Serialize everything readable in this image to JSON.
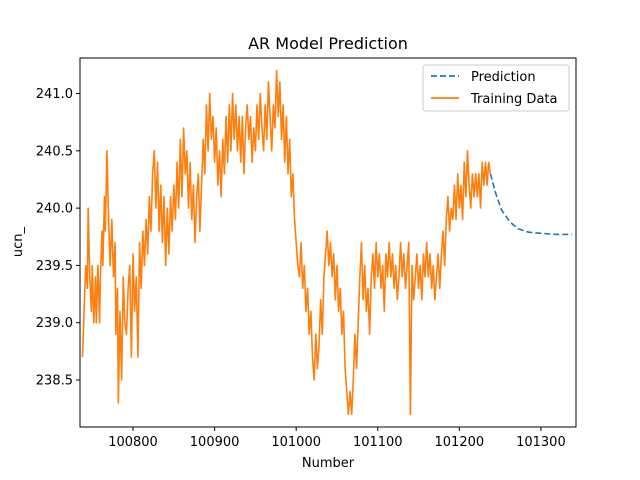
{
  "chart_data": {
    "type": "line",
    "title": "AR Model Prediction",
    "xlabel": "Number",
    "ylabel": "ucn_",
    "xlim": [
      100735,
      101343
    ],
    "ylim": [
      238.09,
      241.31
    ],
    "xticks": [
      100800,
      100900,
      101000,
      101100,
      101200,
      101300
    ],
    "yticks": [
      238.5,
      239.0,
      239.5,
      240.0,
      240.5,
      241.0
    ],
    "ytick_labels": [
      "238.5",
      "239.0",
      "239.5",
      "240.0",
      "240.5",
      "241.0"
    ],
    "grid": false,
    "legend_position": "top-right",
    "series": [
      {
        "name": "Prediction",
        "color": "#1f77b4",
        "style": "dashed",
        "points": [
          [
            101238,
            240.3
          ],
          [
            101245,
            240.12
          ],
          [
            101252,
            239.98
          ],
          [
            101262,
            239.88
          ],
          [
            101272,
            239.82
          ],
          [
            101285,
            239.79
          ],
          [
            101300,
            239.78
          ],
          [
            101320,
            239.77
          ],
          [
            101338,
            239.77
          ]
        ]
      },
      {
        "name": "Training Data",
        "color": "#ff7f0e",
        "style": "solid",
        "points": [
          [
            100738,
            238.7
          ],
          [
            100740,
            239.1
          ],
          [
            100742,
            239.5
          ],
          [
            100744,
            239.3
          ],
          [
            100745,
            240.0
          ],
          [
            100747,
            239.4
          ],
          [
            100749,
            239.1
          ],
          [
            100750,
            239.5
          ],
          [
            100752,
            239.0
          ],
          [
            100754,
            239.4
          ],
          [
            100755,
            239.0
          ],
          [
            100757,
            239.5
          ],
          [
            100759,
            239.0
          ],
          [
            100760,
            239.4
          ],
          [
            100762,
            239.8
          ],
          [
            100763,
            239.5
          ],
          [
            100765,
            240.1
          ],
          [
            100766,
            239.8
          ],
          [
            100768,
            240.5
          ],
          [
            100770,
            239.9
          ],
          [
            100772,
            239.5
          ],
          [
            100774,
            239.9
          ],
          [
            100776,
            239.4
          ],
          [
            100778,
            239.7
          ],
          [
            100779,
            238.9
          ],
          [
            100781,
            239.3
          ],
          [
            100782,
            238.3
          ],
          [
            100784,
            239.1
          ],
          [
            100786,
            238.5
          ],
          [
            100788,
            239.4
          ],
          [
            100790,
            239.0
          ],
          [
            100792,
            238.9
          ],
          [
            100794,
            239.3
          ],
          [
            100796,
            239.5
          ],
          [
            100798,
            238.7
          ],
          [
            100800,
            239.6
          ],
          [
            100802,
            239.1
          ],
          [
            100804,
            239.4
          ],
          [
            100806,
            238.7
          ],
          [
            100808,
            239.7
          ],
          [
            100810,
            239.3
          ],
          [
            100812,
            239.8
          ],
          [
            100814,
            239.5
          ],
          [
            100816,
            239.9
          ],
          [
            100818,
            239.6
          ],
          [
            100820,
            240.1
          ],
          [
            100822,
            239.8
          ],
          [
            100824,
            240.3
          ],
          [
            100826,
            240.5
          ],
          [
            100828,
            240.0
          ],
          [
            100830,
            240.4
          ],
          [
            100832,
            239.8
          ],
          [
            100834,
            240.2
          ],
          [
            100836,
            239.7
          ],
          [
            100838,
            240.1
          ],
          [
            100840,
            239.5
          ],
          [
            100842,
            240.0
          ],
          [
            100844,
            239.6
          ],
          [
            100846,
            240.1
          ],
          [
            100848,
            239.8
          ],
          [
            100850,
            240.2
          ],
          [
            100852,
            239.9
          ],
          [
            100854,
            240.4
          ],
          [
            100856,
            240.0
          ],
          [
            100858,
            240.6
          ],
          [
            100860,
            240.1
          ],
          [
            100862,
            240.7
          ],
          [
            100864,
            240.3
          ],
          [
            100866,
            240.5
          ],
          [
            100868,
            240.0
          ],
          [
            100870,
            240.4
          ],
          [
            100872,
            239.9
          ],
          [
            100874,
            240.2
          ],
          [
            100876,
            239.7
          ],
          [
            100878,
            240.1
          ],
          [
            100880,
            240.3
          ],
          [
            100882,
            239.8
          ],
          [
            100884,
            240.2
          ],
          [
            100886,
            240.6
          ],
          [
            100888,
            240.3
          ],
          [
            100890,
            240.9
          ],
          [
            100892,
            240.5
          ],
          [
            100894,
            241.0
          ],
          [
            100896,
            240.6
          ],
          [
            100898,
            240.8
          ],
          [
            100900,
            240.4
          ],
          [
            100902,
            240.7
          ],
          [
            100904,
            240.2
          ],
          [
            100906,
            240.5
          ],
          [
            100908,
            240.1
          ],
          [
            100910,
            240.6
          ],
          [
            100912,
            240.3
          ],
          [
            100914,
            240.8
          ],
          [
            100916,
            240.4
          ],
          [
            100918,
            240.9
          ],
          [
            100920,
            240.5
          ],
          [
            100922,
            241.0
          ],
          [
            100924,
            240.6
          ],
          [
            100926,
            240.9
          ],
          [
            100928,
            240.5
          ],
          [
            100930,
            240.8
          ],
          [
            100932,
            240.4
          ],
          [
            100934,
            240.8
          ],
          [
            100936,
            240.3
          ],
          [
            100938,
            240.7
          ],
          [
            100940,
            240.9
          ],
          [
            100942,
            240.6
          ],
          [
            100944,
            240.8
          ],
          [
            100946,
            240.4
          ],
          [
            100948,
            240.7
          ],
          [
            100950,
            240.5
          ],
          [
            100952,
            240.9
          ],
          [
            100954,
            240.6
          ],
          [
            100956,
            241.0
          ],
          [
            100958,
            240.7
          ],
          [
            100960,
            240.5
          ],
          [
            100962,
            240.9
          ],
          [
            100964,
            240.6
          ],
          [
            100966,
            241.1
          ],
          [
            100968,
            240.8
          ],
          [
            100970,
            240.5
          ],
          [
            100972,
            240.9
          ],
          [
            100974,
            240.7
          ],
          [
            100976,
            241.2
          ],
          [
            100978,
            240.8
          ],
          [
            100980,
            241.1
          ],
          [
            100982,
            240.6
          ],
          [
            100984,
            240.9
          ],
          [
            100986,
            240.4
          ],
          [
            100988,
            240.8
          ],
          [
            100990,
            240.3
          ],
          [
            100992,
            240.6
          ],
          [
            100994,
            240.1
          ],
          [
            100996,
            240.3
          ],
          [
            100998,
            239.9
          ],
          [
            101000,
            239.7
          ],
          [
            101002,
            239.5
          ],
          [
            101004,
            239.4
          ],
          [
            101006,
            239.7
          ],
          [
            101008,
            239.3
          ],
          [
            101010,
            239.5
          ],
          [
            101012,
            239.1
          ],
          [
            101014,
            239.3
          ],
          [
            101016,
            238.9
          ],
          [
            101018,
            239.1
          ],
          [
            101020,
            238.7
          ],
          [
            101022,
            238.5
          ],
          [
            101024,
            238.9
          ],
          [
            101026,
            238.6
          ],
          [
            101028,
            238.8
          ],
          [
            101030,
            239.2
          ],
          [
            101032,
            238.9
          ],
          [
            101034,
            239.4
          ],
          [
            101036,
            239.6
          ],
          [
            101038,
            239.8
          ],
          [
            101040,
            239.5
          ],
          [
            101042,
            239.7
          ],
          [
            101044,
            239.4
          ],
          [
            101046,
            239.6
          ],
          [
            101048,
            239.2
          ],
          [
            101050,
            239.5
          ],
          [
            101052,
            239.1
          ],
          [
            101054,
            239.3
          ],
          [
            101056,
            238.9
          ],
          [
            101058,
            239.1
          ],
          [
            101060,
            238.6
          ],
          [
            101062,
            238.4
          ],
          [
            101064,
            238.2
          ],
          [
            101066,
            238.4
          ],
          [
            101068,
            238.2
          ],
          [
            101070,
            238.5
          ],
          [
            101072,
            238.9
          ],
          [
            101074,
            238.6
          ],
          [
            101076,
            239.0
          ],
          [
            101078,
            239.4
          ],
          [
            101080,
            239.7
          ],
          [
            101082,
            239.2
          ],
          [
            101084,
            239.5
          ],
          [
            101086,
            239.1
          ],
          [
            101088,
            239.3
          ],
          [
            101090,
            238.9
          ],
          [
            101092,
            239.4
          ],
          [
            101094,
            239.6
          ],
          [
            101096,
            239.3
          ],
          [
            101098,
            239.7
          ],
          [
            101100,
            239.4
          ],
          [
            101102,
            239.6
          ],
          [
            101104,
            239.3
          ],
          [
            101106,
            239.5
          ],
          [
            101108,
            239.1
          ],
          [
            101110,
            239.6
          ],
          [
            101112,
            239.4
          ],
          [
            101114,
            239.7
          ],
          [
            101116,
            239.4
          ],
          [
            101118,
            239.6
          ],
          [
            101120,
            239.3
          ],
          [
            101122,
            239.5
          ],
          [
            101124,
            239.2
          ],
          [
            101126,
            239.4
          ],
          [
            101128,
            239.7
          ],
          [
            101130,
            239.4
          ],
          [
            101132,
            239.6
          ],
          [
            101134,
            239.3
          ],
          [
            101136,
            239.5
          ],
          [
            101138,
            239.7
          ],
          [
            101140,
            238.2
          ],
          [
            101142,
            239.5
          ],
          [
            101144,
            239.2
          ],
          [
            101146,
            239.4
          ],
          [
            101148,
            239.6
          ],
          [
            101150,
            239.3
          ],
          [
            101152,
            239.5
          ],
          [
            101154,
            239.2
          ],
          [
            101156,
            239.6
          ],
          [
            101158,
            239.4
          ],
          [
            101160,
            239.7
          ],
          [
            101162,
            239.4
          ],
          [
            101164,
            239.6
          ],
          [
            101166,
            239.3
          ],
          [
            101168,
            239.5
          ],
          [
            101170,
            239.2
          ],
          [
            101172,
            239.4
          ],
          [
            101174,
            239.6
          ],
          [
            101176,
            239.3
          ],
          [
            101178,
            239.6
          ],
          [
            101180,
            239.8
          ],
          [
            101182,
            239.5
          ],
          [
            101184,
            239.9
          ],
          [
            101186,
            240.1
          ],
          [
            101188,
            239.8
          ],
          [
            101190,
            240.0
          ],
          [
            101192,
            239.9
          ],
          [
            101194,
            240.2
          ],
          [
            101196,
            239.9
          ],
          [
            101198,
            240.3
          ],
          [
            101200,
            240.0
          ],
          [
            101202,
            240.2
          ],
          [
            101204,
            239.9
          ],
          [
            101206,
            240.4
          ],
          [
            101208,
            240.1
          ],
          [
            101210,
            240.5
          ],
          [
            101212,
            240.2
          ],
          [
            101214,
            240.0
          ],
          [
            101216,
            240.3
          ],
          [
            101218,
            240.1
          ],
          [
            101220,
            240.3
          ],
          [
            101222,
            240.1
          ],
          [
            101224,
            240.3
          ],
          [
            101226,
            240.0
          ],
          [
            101228,
            240.4
          ],
          [
            101230,
            240.2
          ],
          [
            101232,
            240.4
          ],
          [
            101234,
            240.2
          ],
          [
            101236,
            240.4
          ],
          [
            101238,
            240.3
          ]
        ]
      }
    ]
  }
}
